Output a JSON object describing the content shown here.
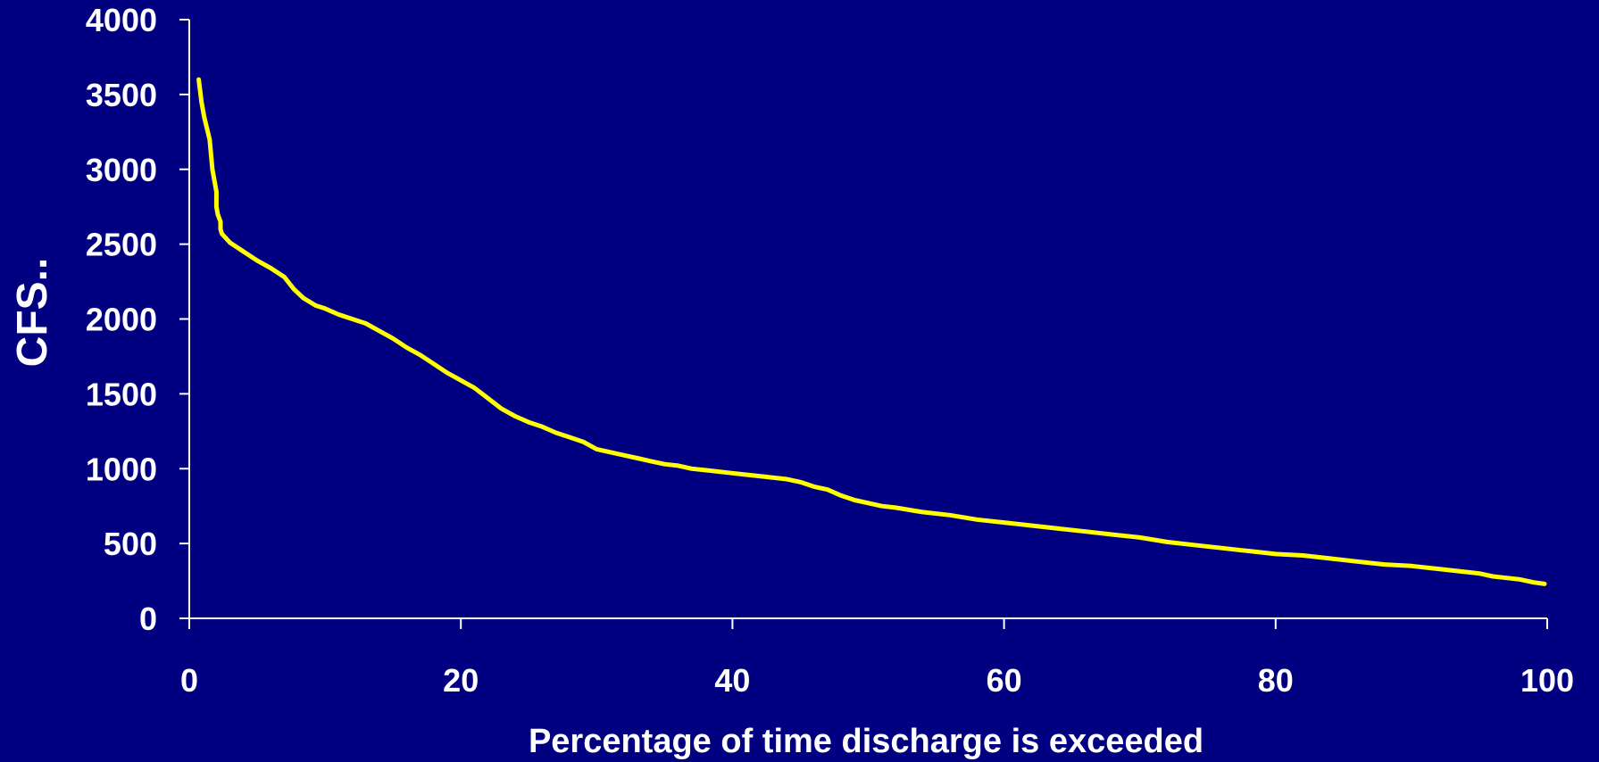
{
  "colors": {
    "background": "#000080",
    "axis": "#ffffff",
    "text": "#ffffff",
    "line": "#ffff00"
  },
  "chart_data": {
    "type": "line",
    "title": "",
    "xlabel": "Percentage of time discharge is exceeded",
    "ylabel": "CFS..",
    "xlim": [
      0,
      100
    ],
    "ylim": [
      0,
      4000
    ],
    "xticks": [
      0,
      20,
      40,
      60,
      80,
      100
    ],
    "yticks": [
      0,
      500,
      1000,
      1500,
      2000,
      2500,
      3000,
      3500,
      4000
    ],
    "xtick_labels": [
      "0",
      "20",
      "40",
      "60",
      "80",
      "100"
    ],
    "ytick_labels": [
      "0",
      "500",
      "1000",
      "1500",
      "2000",
      "2500",
      "3000",
      "3500",
      "4000"
    ],
    "grid": false,
    "legend": false,
    "series": [
      {
        "x": [
          0.7,
          0.9,
          1.1,
          1.5,
          1.7,
          2.0,
          2.0,
          2.1,
          2.3,
          2.3,
          2.4,
          2.5,
          3.0,
          4.0,
          5.0,
          6.0,
          7.0,
          7.7,
          8.4,
          9.3,
          10.0,
          11.0,
          12.0,
          13.0,
          14.0,
          15.0,
          16.0,
          17.0,
          18.0,
          19.0,
          20.0,
          21.0,
          22.0,
          23.0,
          24.0,
          25.0,
          26.0,
          27.0,
          28.0,
          29.0,
          30.0,
          31.0,
          32.0,
          33.0,
          34.0,
          35.0,
          36.0,
          37.0,
          38.0,
          40.0,
          41.0,
          42.0,
          44.0,
          45.0,
          46.0,
          47.0,
          48.0,
          49.0,
          50.0,
          51.0,
          52.0,
          54.0,
          56.0,
          58.0,
          60.0,
          62.0,
          64.0,
          66.0,
          68.0,
          70.0,
          72.0,
          74.0,
          76.0,
          78.0,
          80.0,
          82.0,
          84.0,
          86.0,
          88.0,
          90.0,
          92.0,
          94.0,
          95.0,
          96.0,
          97.0,
          98.0,
          99.0,
          99.8
        ],
        "y": [
          3600,
          3450,
          3350,
          3200,
          3000,
          2850,
          2750,
          2700,
          2650,
          2600,
          2570,
          2560,
          2510,
          2450,
          2390,
          2340,
          2280,
          2200,
          2140,
          2090,
          2070,
          2030,
          2000,
          1970,
          1920,
          1870,
          1810,
          1760,
          1700,
          1640,
          1590,
          1540,
          1470,
          1400,
          1350,
          1310,
          1280,
          1240,
          1210,
          1180,
          1130,
          1110,
          1090,
          1070,
          1050,
          1030,
          1020,
          1000,
          990,
          970,
          960,
          950,
          930,
          910,
          880,
          860,
          820,
          790,
          770,
          750,
          740,
          710,
          690,
          660,
          640,
          620,
          600,
          580,
          560,
          540,
          510,
          490,
          470,
          450,
          430,
          420,
          400,
          380,
          360,
          350,
          330,
          310,
          300,
          280,
          270,
          260,
          240,
          230
        ]
      }
    ]
  }
}
